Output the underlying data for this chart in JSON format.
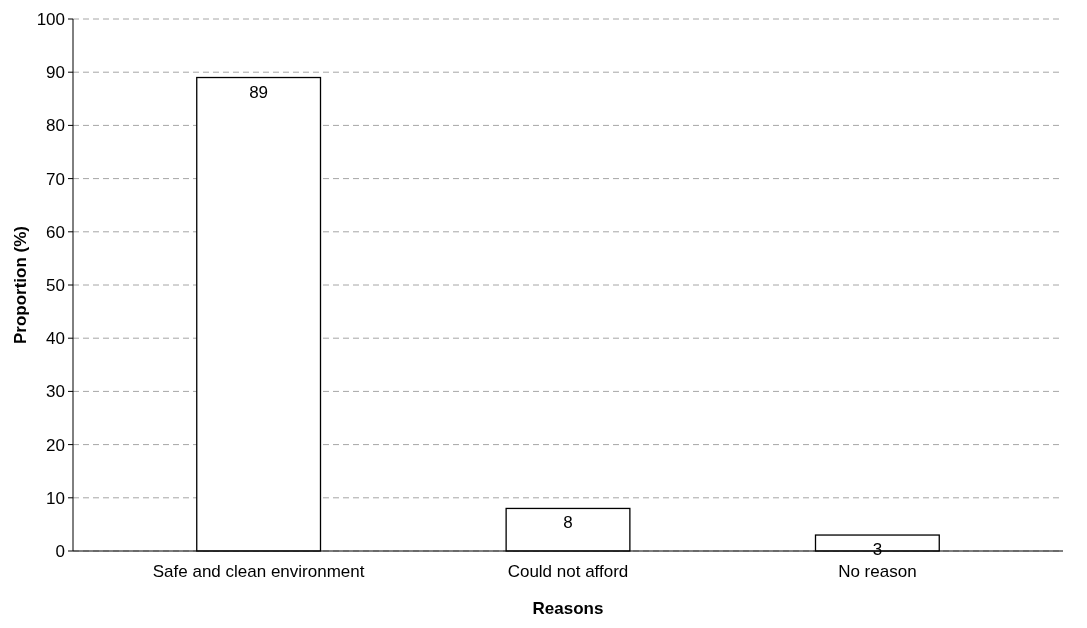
{
  "chart_data": {
    "type": "bar",
    "xlabel": "Reasons",
    "ylabel": "Proportion (%)",
    "categories": [
      "Safe and clean environment",
      "Could not afford",
      "No reason"
    ],
    "values": [
      89,
      8,
      3
    ],
    "color": "#ffffff",
    "ylim": [
      0,
      100
    ],
    "yticks": [
      0,
      10,
      20,
      30,
      40,
      50,
      60,
      70,
      80,
      90,
      100
    ],
    "grid": "y",
    "data_labels": true
  }
}
